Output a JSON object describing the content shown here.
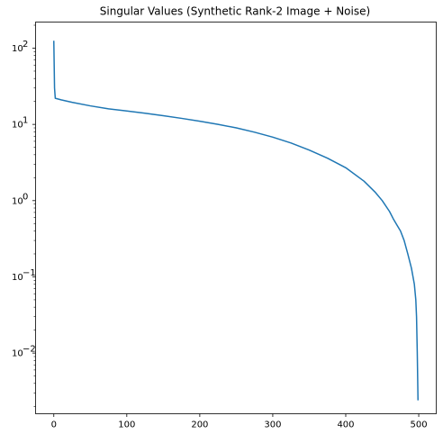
{
  "chart_data": {
    "type": "line",
    "title": "Singular Values (Synthetic Rank-2 Image + Noise)",
    "xlabel": "",
    "ylabel": "",
    "yscale": "log",
    "grid": false,
    "xlim": [
      -25,
      524
    ],
    "ylim": [
      0.0016,
      220
    ],
    "x_ticks": [
      {
        "value": 0,
        "label": "0"
      },
      {
        "value": 100,
        "label": "100"
      },
      {
        "value": 200,
        "label": "200"
      },
      {
        "value": 300,
        "label": "300"
      },
      {
        "value": 400,
        "label": "400"
      },
      {
        "value": 500,
        "label": "500"
      }
    ],
    "y_ticks": [
      {
        "value": 0.01,
        "base": "10",
        "exp": "−2"
      },
      {
        "value": 0.1,
        "base": "10",
        "exp": "−1"
      },
      {
        "value": 1,
        "base": "10",
        "exp": "0"
      },
      {
        "value": 10,
        "base": "10",
        "exp": "1"
      },
      {
        "value": 100,
        "base": "10",
        "exp": "2"
      }
    ],
    "series": [
      {
        "color": "#1f77b4",
        "x": [
          0,
          1,
          2,
          10,
          25,
          50,
          75,
          100,
          125,
          150,
          175,
          200,
          225,
          250,
          275,
          300,
          325,
          350,
          375,
          400,
          425,
          440,
          450,
          460,
          465,
          470,
          475,
          480,
          485,
          490,
          494,
          496,
          497,
          498,
          499
        ],
        "y": [
          125,
          30,
          22,
          21,
          19.5,
          17.5,
          16,
          15,
          14,
          13,
          12,
          11,
          10,
          9,
          7.9,
          6.8,
          5.7,
          4.6,
          3.6,
          2.7,
          1.8,
          1.3,
          1.0,
          0.72,
          0.58,
          0.48,
          0.4,
          0.3,
          0.2,
          0.13,
          0.08,
          0.05,
          0.03,
          0.01,
          0.0024
        ]
      }
    ]
  }
}
